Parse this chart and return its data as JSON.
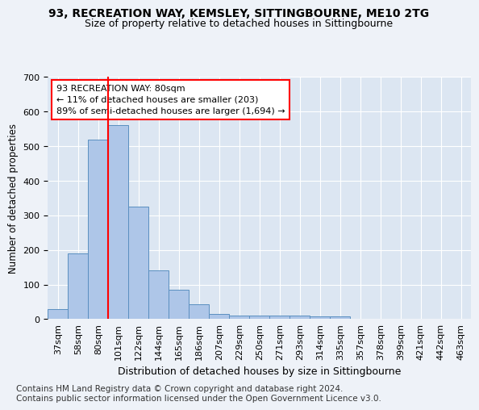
{
  "title1": "93, RECREATION WAY, KEMSLEY, SITTINGBOURNE, ME10 2TG",
  "title2": "Size of property relative to detached houses in Sittingbourne",
  "xlabel": "Distribution of detached houses by size in Sittingbourne",
  "ylabel": "Number of detached properties",
  "footnote": "Contains HM Land Registry data © Crown copyright and database right 2024.\nContains public sector information licensed under the Open Government Licence v3.0.",
  "categories": [
    "37sqm",
    "58sqm",
    "80sqm",
    "101sqm",
    "122sqm",
    "144sqm",
    "165sqm",
    "186sqm",
    "207sqm",
    "229sqm",
    "250sqm",
    "271sqm",
    "293sqm",
    "314sqm",
    "335sqm",
    "357sqm",
    "378sqm",
    "399sqm",
    "421sqm",
    "442sqm",
    "463sqm"
  ],
  "values": [
    30,
    190,
    520,
    560,
    325,
    140,
    85,
    42,
    15,
    10,
    10,
    10,
    10,
    8,
    7,
    0,
    0,
    0,
    0,
    0,
    0
  ],
  "bar_color": "#aec6e8",
  "bar_edge_color": "#5a8fc0",
  "highlight_index": 2,
  "red_line_index": 2,
  "annotation_text": "93 RECREATION WAY: 80sqm\n← 11% of detached houses are smaller (203)\n89% of semi-detached houses are larger (1,694) →",
  "annotation_box_color": "white",
  "annotation_box_edge": "red",
  "ylim": [
    0,
    700
  ],
  "yticks": [
    0,
    100,
    200,
    300,
    400,
    500,
    600,
    700
  ],
  "bg_color": "#eef2f8",
  "plot_bg": "#dce6f2",
  "title1_fontsize": 10,
  "title2_fontsize": 9,
  "xlabel_fontsize": 9,
  "ylabel_fontsize": 8.5,
  "tick_fontsize": 8,
  "footnote_fontsize": 7.5
}
